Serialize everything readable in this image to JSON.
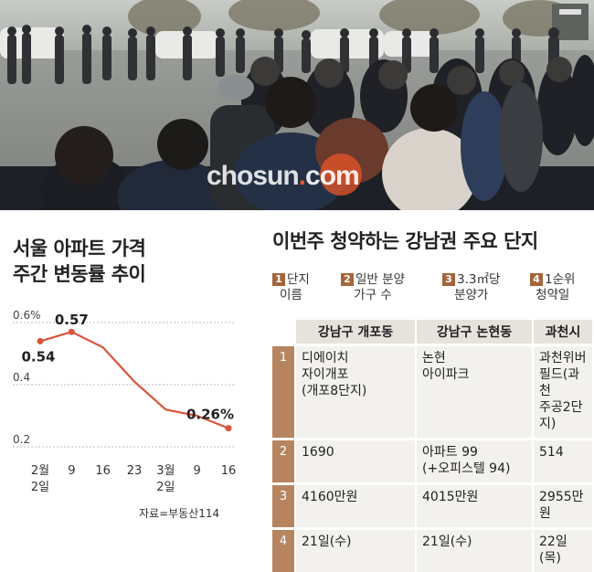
{
  "photo": {
    "watermark_main": "chosun",
    "watermark_dot": ".",
    "watermark_com": "com"
  },
  "chart_title_line1": "서울 아파트 가격",
  "chart_title_line2": "주간 변동률 추이",
  "source": "자료=부동산114",
  "chart_data": {
    "type": "line",
    "title": "서울 아파트 가격 주간 변동률 추이",
    "x_tick_labels": [
      {
        "top": "2월",
        "bottom": "2일"
      },
      {
        "top": "9",
        "bottom": ""
      },
      {
        "top": "16",
        "bottom": ""
      },
      {
        "top": "23",
        "bottom": ""
      },
      {
        "top": "3월",
        "bottom": "2일"
      },
      {
        "top": "9",
        "bottom": ""
      },
      {
        "top": "16",
        "bottom": ""
      }
    ],
    "values": [
      0.54,
      0.57,
      0.52,
      0.41,
      0.32,
      0.3,
      0.26
    ],
    "data_labels": [
      "0.54",
      "0.57",
      "",
      "",
      "",
      "",
      "0.26%"
    ],
    "y_ticks": [
      "0.6%",
      "0.4",
      "0.2"
    ],
    "ylim": [
      0.2,
      0.6
    ],
    "grid": true,
    "colors": {
      "line": "#d9553b",
      "marker": "#d9553b",
      "grid": "#bbbbbb"
    }
  },
  "table_title": "이번주 청약하는 강남권 주요 단지",
  "legend": [
    {
      "num": "1",
      "line1": "단지",
      "line2": "이름"
    },
    {
      "num": "2",
      "line1": "일반 분양",
      "line2": "가구 수"
    },
    {
      "num": "3",
      "line1": "3.3㎡당",
      "line2": "분양가"
    },
    {
      "num": "4",
      "line1": "1순위",
      "line2": "청약일"
    }
  ],
  "table": {
    "headers": [
      "강남구 개포동",
      "강남구 논현동",
      "과천시"
    ],
    "rows": [
      {
        "idx": "1",
        "cells": [
          [
            "디에이치",
            "자이개포",
            "(개포8단지)"
          ],
          [
            "논현",
            "아이파크",
            ""
          ],
          [
            "과천위버",
            "필드(과천",
            "주공2단지)"
          ]
        ]
      },
      {
        "idx": "2",
        "cells": [
          [
            "1690",
            ""
          ],
          [
            "아파트 99",
            "(+오피스텔 94)"
          ],
          [
            "514",
            ""
          ]
        ]
      },
      {
        "idx": "3",
        "cells": [
          [
            "4160만원"
          ],
          [
            "4015만원"
          ],
          [
            "2955만원"
          ]
        ]
      },
      {
        "idx": "4",
        "cells": [
          [
            "21일(수)"
          ],
          [
            "21일(수)"
          ],
          [
            "22일(목)"
          ]
        ]
      }
    ]
  },
  "colors": {
    "accent": "#a3653a",
    "header_bg": "#e6e2dc",
    "cell_bg": "#f3f1ee"
  }
}
